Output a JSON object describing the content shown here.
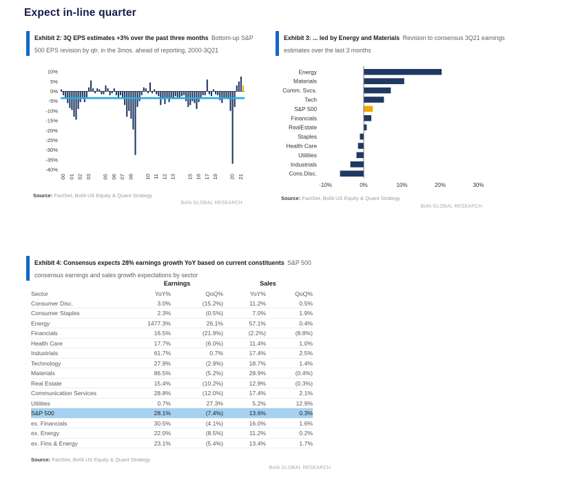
{
  "page": {
    "title": "Expect in-line quarter"
  },
  "brand": "BofA GLOBAL RESEARCH",
  "source": {
    "label": "Source:",
    "text": "FactSet, BofA US Equity & Quant Strategy"
  },
  "exhibit2": {
    "title": "Exhibit 2: 3Q EPS estimates +3% over the past three months",
    "subtitle": "Bottom-up S&P 500 EPS revision by qtr. in the 3mos. ahead of reporting, 2000-3Q21"
  },
  "exhibit3": {
    "title": "Exhibit 3: ... led by Energy and Materials",
    "subtitle": "Revision to consensus 3Q21 earnings estimates over the last 3 months"
  },
  "exhibit4": {
    "title": "Exhibit 4: Consensus expects 28% earnings growth YoY based on current constituents",
    "subtitle": "S&P 500 consensus earnings and sales growth expectations by sector",
    "table": {
      "group_headers": [
        "Earnings",
        "Sales"
      ],
      "columns": [
        "Sector",
        "YoY%",
        "QoQ%",
        "YoY%",
        "QoQ%"
      ],
      "rows": [
        [
          "Consumer Disc.",
          "3.0%",
          "(15.2%)",
          "11.2%",
          "0.5%"
        ],
        [
          "Consumer Staples",
          "2.3%",
          "(0.5%)",
          "7.0%",
          "1.9%"
        ],
        [
          "Energy",
          "1477.3%",
          "26.1%",
          "57.1%",
          "0.4%"
        ],
        [
          "Financials",
          "16.5%",
          "(21.9%)",
          "(2.2%)",
          "(8.8%)"
        ],
        [
          "Health Care",
          "17.7%",
          "(6.0%)",
          "11.4%",
          "1.0%"
        ],
        [
          "Industrials",
          "61.7%",
          "0.7%",
          "17.4%",
          "2.5%"
        ],
        [
          "Technology",
          "27.9%",
          "(2.9%)",
          "18.7%",
          "1.4%"
        ],
        [
          "Materials",
          "86.5%",
          "(5.2%)",
          "28.9%",
          "(0.4%)"
        ],
        [
          "Real Estate",
          "15.4%",
          "(10.2%)",
          "12.9%",
          "(0.3%)"
        ],
        [
          "Communication Services",
          "28.8%",
          "(12.0%)",
          "17.4%",
          "2.1%"
        ],
        [
          "Utilities",
          "0.7%",
          "27.3%",
          "5.2%",
          "12.9%"
        ],
        [
          "S&P 500",
          "28.1%",
          "(7.4%)",
          "13.6%",
          "0.3%"
        ],
        [
          "ex. Financials",
          "30.5%",
          "(4.1%)",
          "16.0%",
          "1.6%"
        ],
        [
          "ex. Energy",
          "22.0%",
          "(8.5%)",
          "11.2%",
          "0.2%"
        ],
        [
          "ex. Fins & Energy",
          "23.1%",
          "(5.4%)",
          "13.4%",
          "1.7%"
        ]
      ],
      "highlight_row": "S&P 500"
    }
  },
  "chart_data": [
    {
      "type": "bar",
      "title": "Bottom-up S&P 500 EPS revision by quarter, 2000Q1-2021Q3",
      "xlabel": "year",
      "ylabel": "revision %",
      "ylim": [
        -40,
        10
      ],
      "yticks": [
        10,
        5,
        0,
        -5,
        -10,
        -15,
        -20,
        -25,
        -30,
        -35,
        -40
      ],
      "start": "2000Q1",
      "end": "2021Q3",
      "values": [
        1,
        -2,
        -3.5,
        -6,
        -8.5,
        -9.5,
        -13,
        -14.5,
        -9,
        -5.5,
        -3,
        -5.5,
        -3,
        2,
        5.5,
        1.5,
        -1,
        1.5,
        1,
        -1.5,
        -1.5,
        3,
        1.5,
        -2,
        -1,
        1.5,
        -2,
        -3,
        -2,
        -3,
        -7,
        -13,
        -10,
        -14,
        -19.5,
        -32.5,
        -8,
        -5,
        -2,
        2,
        1.5,
        -1,
        4.5,
        -1,
        1,
        -1.5,
        -2.5,
        -7,
        -4,
        -6.5,
        -3.5,
        -5.5,
        -3.5,
        -4,
        -2.5,
        -3.5,
        -3,
        -2.5,
        -2,
        -5,
        -8,
        -7,
        -5,
        -6,
        -9,
        -5.5,
        -3.5,
        -2,
        -2,
        6,
        -1.5,
        -2.5,
        1,
        -1.5,
        -2,
        -4.5,
        -6,
        -3.5,
        -3,
        -4,
        -10,
        -37,
        -8,
        3,
        5,
        7.5,
        3
      ],
      "xticks": [
        {
          "label": "00",
          "index": 0
        },
        {
          "label": "01",
          "index": 4
        },
        {
          "label": "02",
          "index": 8
        },
        {
          "label": "03",
          "index": 12
        },
        {
          "label": "05",
          "index": 20
        },
        {
          "label": "06",
          "index": 24
        },
        {
          "label": "07",
          "index": 28
        },
        {
          "label": "08",
          "index": 32
        },
        {
          "label": "10",
          "index": 40
        },
        {
          "label": "11",
          "index": 44
        },
        {
          "label": "12",
          "index": 48
        },
        {
          "label": "13",
          "index": 52
        },
        {
          "label": "15",
          "index": 60
        },
        {
          "label": "16",
          "index": 64
        },
        {
          "label": "17",
          "index": 68
        },
        {
          "label": "18",
          "index": 72
        },
        {
          "label": "20",
          "index": 80
        },
        {
          "label": "21",
          "index": 84
        }
      ],
      "avg_line": -3.5,
      "avg_line_color": "#29abe2",
      "bar_color": "#1f3864",
      "last_bar_color": "#f2a900",
      "legend": "none",
      "grid": false
    },
    {
      "type": "bar",
      "orientation": "horizontal",
      "title": "Revision to consensus 3Q21 earnings estimates, last 3 months",
      "categories": [
        "Energy",
        "Materials",
        "Comm. Svcs.",
        "Tech",
        "S&P 500",
        "Financials",
        "RealEstate",
        "Staples",
        "Health Care",
        "Utilities",
        "Industrials",
        "Cons.Disc."
      ],
      "values": [
        20.3,
        10.5,
        7.0,
        5.2,
        2.3,
        1.9,
        0.7,
        -1.0,
        -1.5,
        -1.9,
        -3.5,
        -6.2
      ],
      "xticks": [
        -10,
        0,
        10,
        20,
        30
      ],
      "xlim": [
        -13,
        33
      ],
      "highlight_category": "S&P 500",
      "bar_color": "#1f3864",
      "highlight_color": "#f2a900",
      "legend": "none",
      "grid": false
    }
  ]
}
